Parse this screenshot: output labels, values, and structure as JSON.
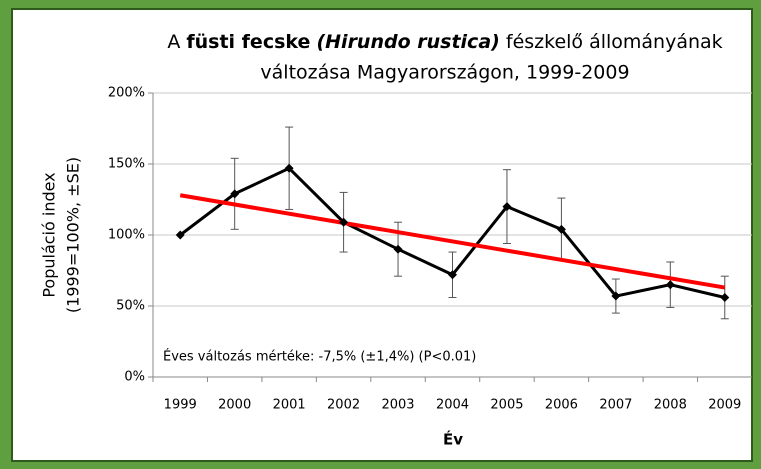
{
  "chart_data": {
    "type": "line",
    "title_lines": [
      [
        "A",
        "füsti fecske",
        "(Hirundo rustica)",
        "fészkelő állományának"
      ],
      [
        "változása Magyarországon, 1999-2009"
      ]
    ],
    "ylabel": [
      "Populáció index",
      "(1999=100%, ±SE)"
    ],
    "xlabel": "Év",
    "annotation": "Éves változás mértéke: -7,5% (±1,4%) (P<0.01)",
    "categories": [
      "1999",
      "2000",
      "2001",
      "2002",
      "2003",
      "2004",
      "2005",
      "2006",
      "2007",
      "2008",
      "2009"
    ],
    "series": [
      {
        "color": "#000000",
        "values": [
          100,
          129,
          147,
          109,
          90,
          72,
          120,
          104,
          57,
          65,
          56
        ],
        "errors": [
          0,
          25,
          29,
          21,
          19,
          16,
          26,
          22,
          12,
          16,
          15
        ]
      }
    ],
    "trend": {
      "x": [
        "1999",
        "2009"
      ],
      "values": [
        128,
        63
      ],
      "color": "#ff0000"
    },
    "ylim": [
      0,
      200
    ],
    "yticks": [
      {
        "value": 0,
        "label": "0%"
      },
      {
        "value": 50,
        "label": "50%"
      },
      {
        "value": 100,
        "label": "100%"
      },
      {
        "value": 150,
        "label": "150%"
      },
      {
        "value": 200,
        "label": "200%"
      }
    ],
    "grid": true
  }
}
